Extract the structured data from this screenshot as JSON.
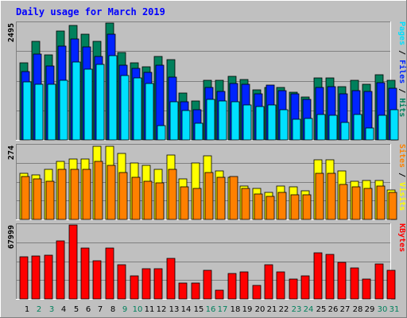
{
  "chart_data": {
    "type": "bar",
    "title": "Daily usage for March 2019",
    "x": [
      "1",
      "2",
      "3",
      "4",
      "5",
      "6",
      "7",
      "8",
      "9",
      "10",
      "11",
      "12",
      "13",
      "14",
      "15",
      "16",
      "17",
      "18",
      "19",
      "20",
      "21",
      "22",
      "23",
      "24",
      "25",
      "26",
      "27",
      "28",
      "29",
      "30",
      "31"
    ],
    "weekend_days": [
      2,
      3,
      9,
      10,
      16,
      17,
      23,
      24,
      30,
      31
    ],
    "panels": [
      {
        "max_label": "2495",
        "ymax": 2495,
        "axis_label_parts": [
          "Pages",
          " / ",
          "Files",
          " / ",
          "Hits"
        ],
        "series": [
          {
            "name": "Hits",
            "color": "#00805c",
            "values": [
              1650,
              2100,
              1820,
              2320,
              2450,
              2260,
              2100,
              2495,
              1860,
              1650,
              1560,
              1790,
              1710,
              1000,
              830,
              1280,
              1280,
              1360,
              1290,
              1070,
              1120,
              1120,
              1020,
              920,
              1320,
              1320,
              1130,
              1280,
              1190,
              1400,
              1270
            ]
          },
          {
            "name": "Files",
            "color": "#0024ff",
            "values": [
              1460,
              1830,
              1570,
              2010,
              2150,
              1980,
              1780,
              2260,
              1600,
              1530,
              1440,
              1600,
              1340,
              820,
              640,
              1120,
              1040,
              1210,
              1180,
              980,
              1170,
              1050,
              990,
              860,
              1120,
              1130,
              990,
              1060,
              1030,
              1230,
              1100
            ]
          },
          {
            "name": "Pages",
            "color": "#00e0ff",
            "values": [
              1240,
              1190,
              1180,
              1270,
              1670,
              1510,
              1610,
              1800,
              1380,
              1320,
              1210,
              310,
              810,
              630,
              360,
              860,
              840,
              810,
              740,
              720,
              740,
              650,
              440,
              450,
              550,
              530,
              380,
              550,
              260,
              520,
              640
            ]
          }
        ]
      },
      {
        "max_label": "274",
        "ymax": 274,
        "axis_label_parts": [
          "Sites",
          " / ",
          "Visits"
        ],
        "series": [
          {
            "name": "Visits",
            "color": "#ffff00",
            "values": [
              170,
              165,
              185,
              215,
              225,
              225,
              270,
              270,
              245,
              210,
              200,
              185,
              240,
              150,
              210,
              235,
              180,
              155,
              125,
              115,
              100,
              125,
              120,
              105,
              220,
              220,
              180,
              140,
              145,
              145,
              110
            ]
          },
          {
            "name": "Sites",
            "color": "#ff8000",
            "values": [
              160,
              150,
              140,
              185,
              185,
              185,
              215,
              200,
              175,
              155,
              140,
              135,
              185,
              120,
              115,
              175,
              155,
              160,
              115,
              95,
              85,
              100,
              90,
              90,
              170,
              170,
              130,
              120,
              115,
              125,
              100
            ]
          }
        ]
      },
      {
        "max_label": "67999",
        "ymax": 67999,
        "axis_label_parts": [
          "KBytes"
        ],
        "series": [
          {
            "name": "KBytes",
            "color": "#ff0000",
            "values": [
              38500,
              39500,
              40500,
              53500,
              67999,
              46500,
              35000,
              46500,
              31500,
              21500,
              28000,
              27500,
              37500,
              14500,
              14500,
              26500,
              8000,
              23500,
              24500,
              12500,
              31500,
              24500,
              18500,
              21500,
              42500,
              41000,
              33500,
              28500,
              18000,
              32500,
              26500
            ]
          }
        ]
      }
    ]
  },
  "colors": {
    "background": "#c0c0c0",
    "frame_dark": "#808080",
    "frame_light": "#ffffff",
    "title": "#0000ff",
    "weekday_label": "#000000",
    "weekend_label": "#00805c",
    "gridline": "#808080"
  }
}
